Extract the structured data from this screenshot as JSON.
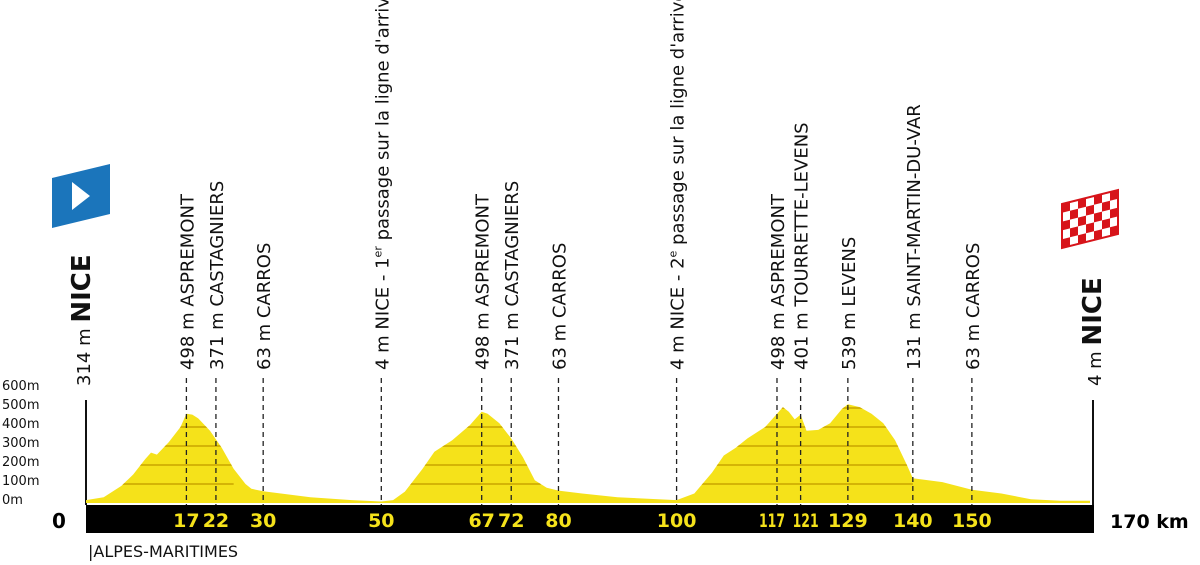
{
  "chart_data": {
    "type": "area",
    "x_unit": "km",
    "xlim": [
      0,
      170
    ],
    "ylim": [
      0,
      600
    ],
    "y_ticks": [
      "0m",
      "100m",
      "200m",
      "300m",
      "400m",
      "500m",
      "600m"
    ],
    "x_start_label": "0",
    "x_end_label": "170 km",
    "region": "|ALPES-MARITIMES",
    "colors": {
      "profile": "#f5e21a",
      "hatch": "#c9a400",
      "bar": "#000000",
      "km_text": "#f5e21a",
      "start_flag": "#1b75bb"
    },
    "profile": [
      [
        0,
        15
      ],
      [
        3,
        30
      ],
      [
        6,
        90
      ],
      [
        8,
        150
      ],
      [
        10,
        230
      ],
      [
        11,
        265
      ],
      [
        12,
        255
      ],
      [
        14,
        320
      ],
      [
        16,
        400
      ],
      [
        17,
        470
      ],
      [
        18,
        465
      ],
      [
        19,
        445
      ],
      [
        21,
        380
      ],
      [
        23,
        290
      ],
      [
        25,
        180
      ],
      [
        27,
        100
      ],
      [
        28,
        75
      ],
      [
        30,
        62
      ],
      [
        33,
        50
      ],
      [
        38,
        30
      ],
      [
        45,
        15
      ],
      [
        50,
        8
      ],
      [
        52,
        15
      ],
      [
        54,
        60
      ],
      [
        57,
        180
      ],
      [
        59,
        270
      ],
      [
        62,
        330
      ],
      [
        65,
        410
      ],
      [
        67,
        480
      ],
      [
        68,
        470
      ],
      [
        70,
        420
      ],
      [
        72,
        340
      ],
      [
        74,
        240
      ],
      [
        76,
        120
      ],
      [
        78,
        80
      ],
      [
        80,
        65
      ],
      [
        84,
        50
      ],
      [
        90,
        30
      ],
      [
        100,
        15
      ],
      [
        103,
        50
      ],
      [
        106,
        160
      ],
      [
        108,
        250
      ],
      [
        110,
        290
      ],
      [
        112,
        340
      ],
      [
        115,
        400
      ],
      [
        117,
        470
      ],
      [
        118,
        505
      ],
      [
        119,
        480
      ],
      [
        120,
        440
      ],
      [
        121,
        465
      ],
      [
        122,
        380
      ],
      [
        124,
        385
      ],
      [
        126,
        420
      ],
      [
        128,
        495
      ],
      [
        129,
        520
      ],
      [
        131,
        505
      ],
      [
        133,
        470
      ],
      [
        135,
        420
      ],
      [
        137,
        330
      ],
      [
        139,
        200
      ],
      [
        140,
        130
      ],
      [
        145,
        110
      ],
      [
        150,
        70
      ],
      [
        155,
        50
      ],
      [
        160,
        20
      ],
      [
        165,
        12
      ],
      [
        170,
        12
      ]
    ],
    "start": {
      "elevation": "314 m",
      "name": "NICE"
    },
    "finish": {
      "elevation": "4 m",
      "name": "NICE"
    },
    "points": [
      {
        "km": 17,
        "km_label": "17",
        "text": "498 m ASPREMONT"
      },
      {
        "km": 22,
        "km_label": "22",
        "text": "371 m CASTAGNIERS"
      },
      {
        "km": 30,
        "km_label": "30",
        "text": "63 m CARROS"
      },
      {
        "km": 50,
        "km_label": "50",
        "text": "4 m NICE - 1",
        "sup": "er",
        "text2": " passage sur la ligne d'arrivée"
      },
      {
        "km": 67,
        "km_label": "67",
        "text": "498 m ASPREMONT"
      },
      {
        "km": 72,
        "km_label": "72",
        "text": "371 m CASTAGNIERS"
      },
      {
        "km": 80,
        "km_label": "80",
        "text": "63 m CARROS"
      },
      {
        "km": 100,
        "km_label": "100",
        "text": "4 m NICE - 2",
        "sup": "e",
        "text2": " passage sur la ligne d'arrivée"
      },
      {
        "km": 117,
        "km_label": "117",
        "text": "498 m ASPREMONT"
      },
      {
        "km": 121,
        "km_label": "121",
        "text": "401 m TOURRETTE-LEVENS"
      },
      {
        "km": 129,
        "km_label": "129",
        "text": "539 m LEVENS"
      },
      {
        "km": 140,
        "km_label": "140",
        "text": "131 m SAINT-MARTIN-DU-VAR"
      },
      {
        "km": 150,
        "km_label": "150",
        "text": "63 m CARROS"
      }
    ]
  }
}
